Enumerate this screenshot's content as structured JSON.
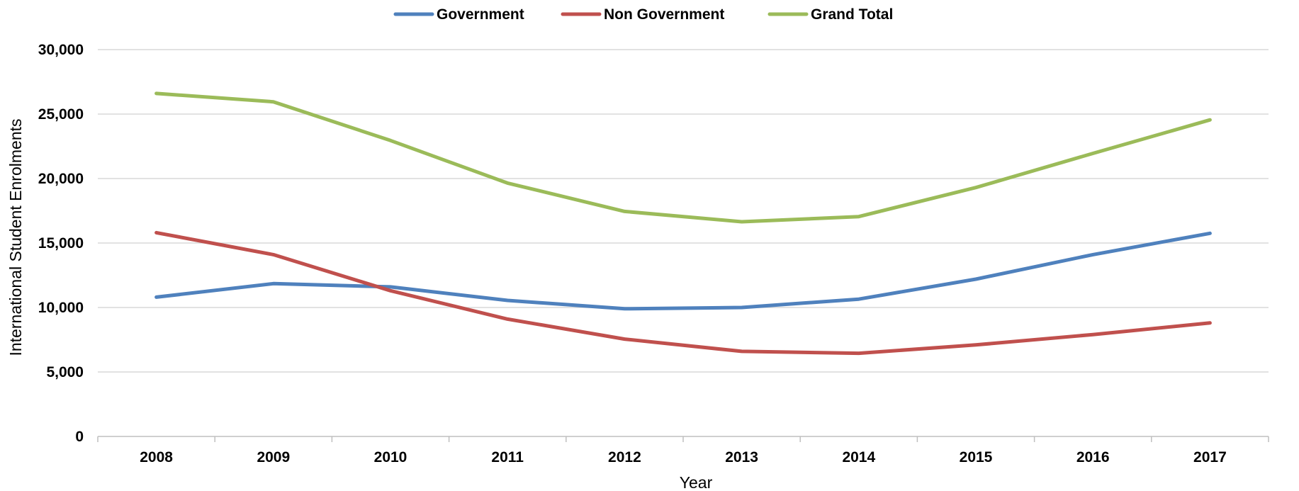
{
  "chart_data": {
    "type": "line",
    "title": "",
    "xlabel": "Year",
    "ylabel": "International Student Enrolments",
    "categories": [
      "2008",
      "2009",
      "2010",
      "2011",
      "2012",
      "2013",
      "2014",
      "2015",
      "2016",
      "2017"
    ],
    "ylim": [
      0,
      30000
    ],
    "yticks": [
      0,
      5000,
      10000,
      15000,
      20000,
      25000,
      30000
    ],
    "ytick_labels": [
      "0",
      "5,000",
      "10,000",
      "15,000",
      "20,000",
      "25,000",
      "30,000"
    ],
    "grid": true,
    "legend_position": "top",
    "series": [
      {
        "name": "Government",
        "color": "#4f81bd",
        "values": [
          10800,
          11850,
          11600,
          10550,
          9900,
          10000,
          10650,
          12200,
          14100,
          15750
        ]
      },
      {
        "name": "Non Government",
        "color": "#c0504d",
        "values": [
          15800,
          14100,
          11300,
          9100,
          7550,
          6600,
          6450,
          7100,
          7900,
          8800
        ]
      },
      {
        "name": "Grand Total",
        "color": "#9bbb59",
        "values": [
          26600,
          25950,
          22950,
          19650,
          17450,
          16650,
          17050,
          19300,
          21950,
          24550
        ]
      }
    ]
  }
}
